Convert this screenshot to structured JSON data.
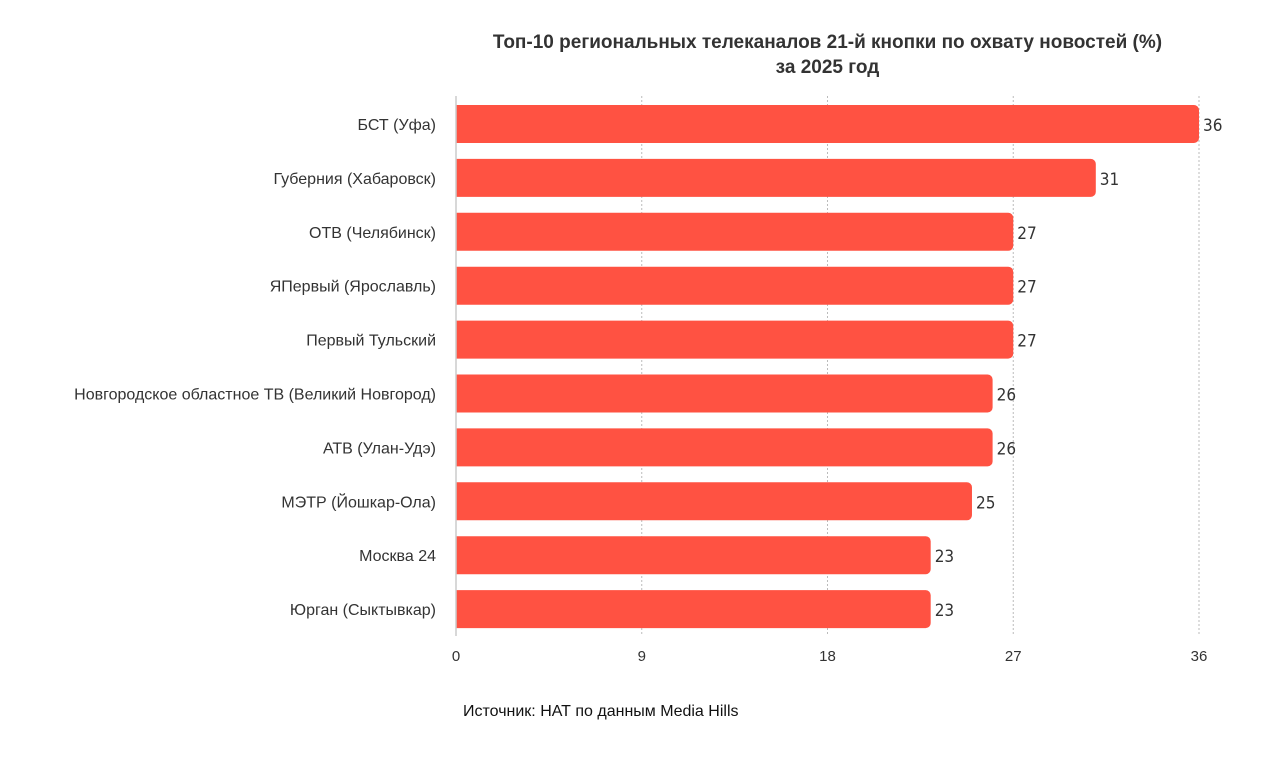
{
  "chart_data": {
    "type": "bar",
    "orientation": "horizontal",
    "title_line1": "Топ-10 региональных телеканалов 21-й кнопки по охвату новостей (%)",
    "title_line2": "за 2025 год",
    "categories": [
      "БСТ (Уфа)",
      "Губерния (Хабаровск)",
      "ОТВ (Челябинск)",
      "ЯПервый (Ярославль)",
      "Первый Тульский",
      "Новгородское областное ТВ (Великий Новгород)",
      "АТВ (Улан-Удэ)",
      "МЭТР (Йошкар-Ола)",
      "Москва 24",
      "Юрган (Сыктывкар)"
    ],
    "values": [
      36,
      31,
      27,
      27,
      27,
      26,
      26,
      25,
      23,
      23
    ],
    "xticks": [
      0,
      9,
      18,
      27,
      36
    ],
    "xlim": [
      0,
      36
    ],
    "grid": true,
    "bar_color": "#FF5242",
    "xlabel": "",
    "ylabel": ""
  },
  "source": "Источник: НАТ по данным Media Hills"
}
